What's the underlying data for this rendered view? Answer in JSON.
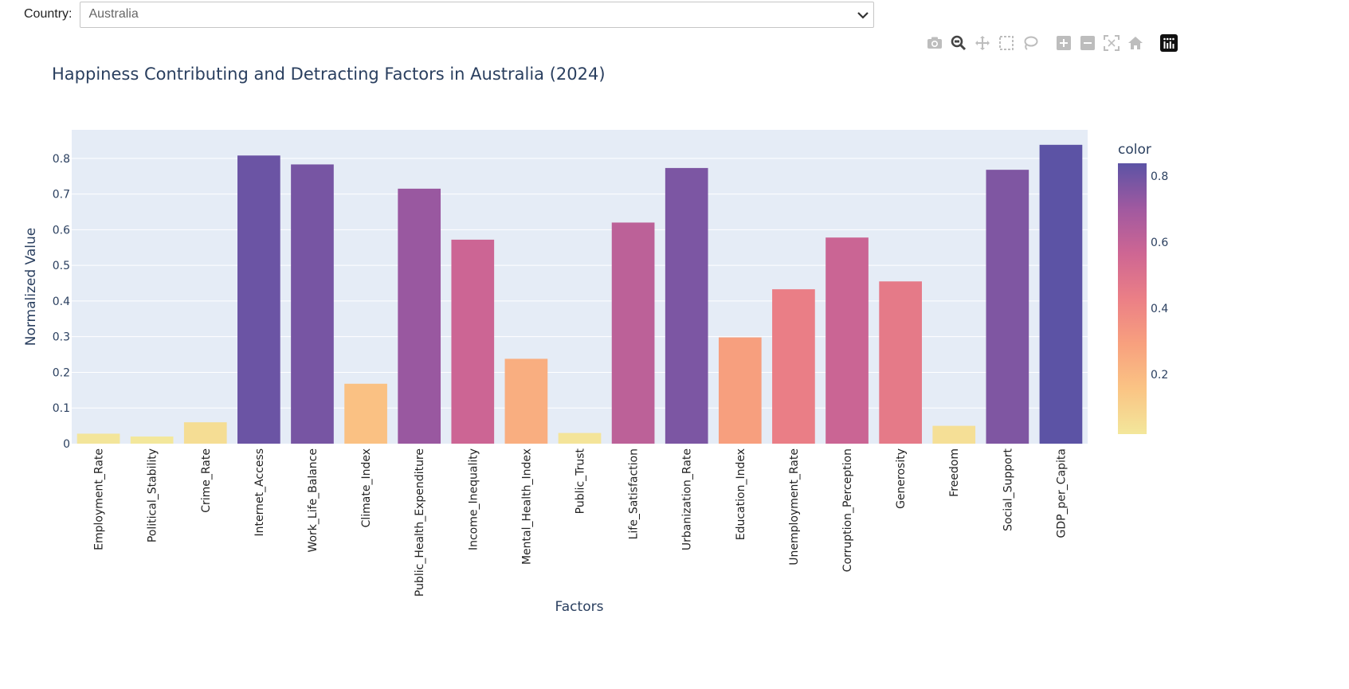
{
  "controls": {
    "country_label": "Country:",
    "country_value": "Australia"
  },
  "modebar": {
    "icons": [
      "camera-icon",
      "zoom-icon",
      "pan-icon",
      "box-select-icon",
      "lasso-icon",
      "zoom-in-icon",
      "zoom-out-icon",
      "autoscale-icon",
      "reset-axes-icon",
      "plotly-logo-icon"
    ]
  },
  "colors": {
    "plot_bg": "#e5ecf6",
    "text": "#2a3f5f",
    "colorscale": [
      "#f3e79b",
      "#fac484",
      "#f8a07e",
      "#eb7f86",
      "#ce6693",
      "#a059a0",
      "#5c53a5"
    ]
  },
  "chart_data": {
    "type": "bar",
    "title": "Happiness Contributing and Detracting Factors in Australia (2024)",
    "xlabel": "Factors",
    "ylabel": "Normalized Value",
    "categories": [
      "Employment_Rate",
      "Political_Stability",
      "Crime_Rate",
      "Internet_Access",
      "Work_Life_Balance",
      "Climate_Index",
      "Public_Health_Expenditure",
      "Income_Inequality",
      "Mental_Health_Index",
      "Public_Trust",
      "Life_Satisfaction",
      "Urbanization_Rate",
      "Education_Index",
      "Unemployment_Rate",
      "Corruption_Perception",
      "Generosity",
      "Freedom",
      "Social_Support",
      "GDP_per_Capita"
    ],
    "values": [
      0.028,
      0.02,
      0.06,
      0.808,
      0.783,
      0.168,
      0.715,
      0.572,
      0.238,
      0.03,
      0.62,
      0.773,
      0.298,
      0.433,
      0.578,
      0.455,
      0.05,
      0.768,
      0.838
    ],
    "ylim": [
      0,
      0.88
    ],
    "yticks": [
      "0",
      "0.1",
      "0.2",
      "0.3",
      "0.4",
      "0.5",
      "0.6",
      "0.7",
      "0.8"
    ],
    "grid": true,
    "colorbar": {
      "title": "color",
      "tick_labels": [
        "0.2",
        "0.4",
        "0.6",
        "0.8"
      ],
      "range": [
        0.02,
        0.838
      ]
    }
  }
}
